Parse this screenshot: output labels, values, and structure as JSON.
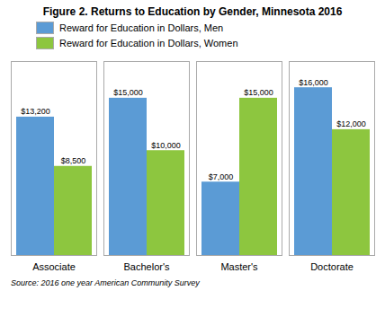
{
  "chart_data": {
    "type": "bar",
    "title": "Figure 2. Returns to Education by Gender, Minnesota 2016",
    "categories": [
      "Associate",
      "Bachelor's",
      "Master's",
      "Doctorate"
    ],
    "series": [
      {
        "name": "Reward for Education in Dollars, Men",
        "color": "#5B9BD5",
        "values": [
          13200,
          15000,
          7000,
          16000
        ],
        "value_labels": [
          "$13,200",
          "$15,000",
          "$7,000",
          "$16,000"
        ]
      },
      {
        "name": "Reward for Education in Dollars, Women",
        "color": "#8DC63F",
        "values": [
          8500,
          10000,
          15000,
          12000
        ],
        "value_labels": [
          "$8,500",
          "$10,000",
          "$15,000",
          "$12,000"
        ]
      }
    ],
    "ylim": [
      0,
      18500
    ],
    "yticks": [],
    "tick_labels": "x",
    "data_labels": true,
    "grid": false,
    "legend": "upper left",
    "annotations": [
      "Source: 2016 one year American Community Survey"
    ]
  }
}
